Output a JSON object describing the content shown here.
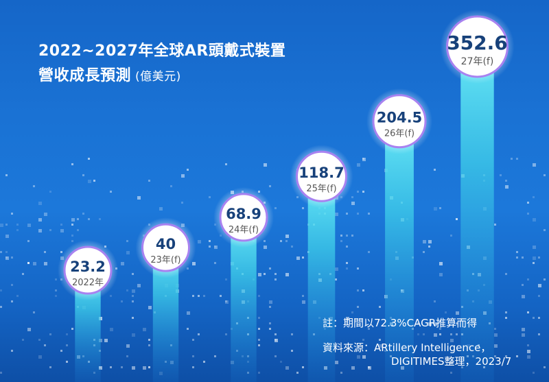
{
  "title_line1": "2022~2027年全球AR頭戴式裝置",
  "title_line2": "營收成長預測",
  "unit": "(億美元)",
  "note": "註：期間以72.3%CAGR推算而得",
  "source_line1": "資料來源：ARtillery Intelligence，",
  "source_line2": "DIGITIMES整理，2023/7",
  "colors": {
    "circle_ring": "#a882f0",
    "value_text": "#17417a",
    "label_text": "#555555",
    "beam": "#4fe3f2"
  },
  "chart_data": {
    "type": "bar",
    "categories": [
      "2022年",
      "23年(f)",
      "24年(f)",
      "25年(f)",
      "26年(f)",
      "27年(f)"
    ],
    "values": [
      23.2,
      40,
      68.9,
      118.7,
      204.5,
      352.6
    ],
    "value_labels": [
      "23.2",
      "40",
      "68.9",
      "118.7",
      "204.5",
      "352.6"
    ],
    "ylim": [
      0,
      352.6
    ],
    "grid": false
  }
}
